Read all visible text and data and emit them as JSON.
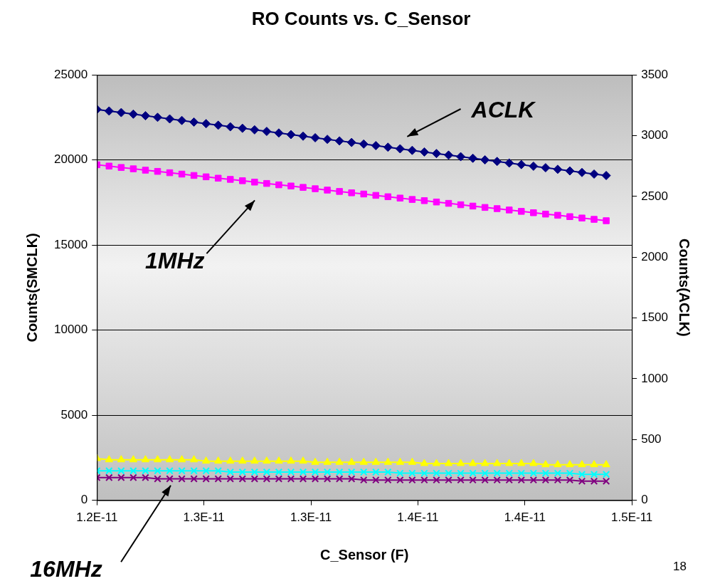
{
  "chart_data": {
    "type": "line",
    "title": "RO Counts vs. C_Sensor",
    "xlabel": "C_Sensor (F)",
    "ylabel": "Counts(SMCLK)",
    "y2label": "Counts(ACLK)",
    "x": [
      1.2e-11,
      1.2068e-11,
      1.2136e-11,
      1.2204e-11,
      1.2272e-11,
      1.234e-11,
      1.2408e-11,
      1.2476e-11,
      1.2544e-11,
      1.2612e-11,
      1.268e-11,
      1.2748e-11,
      1.2816e-11,
      1.2884e-11,
      1.2952e-11,
      1.302e-11,
      1.3088e-11,
      1.3156e-11,
      1.3224e-11,
      1.3292e-11,
      1.336e-11,
      1.3428e-11,
      1.3496e-11,
      1.3564e-11,
      1.3632e-11,
      1.37e-11,
      1.3768e-11,
      1.3836e-11,
      1.3904e-11,
      1.3972e-11,
      1.404e-11,
      1.4108e-11,
      1.4176e-11,
      1.4244e-11,
      1.4312e-11,
      1.438e-11,
      1.4448e-11,
      1.4516e-11,
      1.4584e-11,
      1.4652e-11,
      1.472e-11,
      1.4788e-11,
      1.4856e-11
    ],
    "series": [
      {
        "name": "ACLK",
        "color": "#000080",
        "marker": "diamond",
        "axis": "y2",
        "values": [
          3216,
          3203,
          3190,
          3177,
          3164,
          3151,
          3138,
          3125,
          3112,
          3099,
          3086,
          3073,
          3061,
          3048,
          3035,
          3022,
          3009,
          2996,
          2983,
          2970,
          2957,
          2944,
          2931,
          2918,
          2905,
          2892,
          2879,
          2866,
          2853,
          2840,
          2827,
          2814,
          2801,
          2788,
          2775,
          2762,
          2749,
          2736,
          2723,
          2710,
          2697,
          2684,
          2672
        ]
      },
      {
        "name": "1MHz",
        "color": "#ff00ff",
        "marker": "square",
        "values": [
          19720,
          19640,
          19560,
          19480,
          19400,
          19330,
          19250,
          19170,
          19090,
          19010,
          18930,
          18860,
          18780,
          18700,
          18620,
          18540,
          18470,
          18390,
          18310,
          18230,
          18150,
          18070,
          18000,
          17920,
          17840,
          17760,
          17680,
          17610,
          17530,
          17450,
          17370,
          17290,
          17210,
          17140,
          17060,
          16980,
          16900,
          16820,
          16750,
          16670,
          16590,
          16510,
          16430
        ]
      },
      {
        "color": "#ffff00",
        "marker": "triangle",
        "values": [
          2450,
          2380,
          2380,
          2380,
          2380,
          2380,
          2380,
          2380,
          2380,
          2300,
          2300,
          2300,
          2300,
          2300,
          2300,
          2300,
          2300,
          2300,
          2230,
          2230,
          2230,
          2230,
          2230,
          2230,
          2230,
          2230,
          2230,
          2160,
          2160,
          2160,
          2160,
          2160,
          2160,
          2160,
          2160,
          2160,
          2160,
          2090,
          2090,
          2090,
          2090,
          2090,
          2090
        ]
      },
      {
        "color": "#00ffff",
        "marker": "cross",
        "values": [
          1730,
          1730,
          1730,
          1730,
          1730,
          1730,
          1730,
          1730,
          1730,
          1730,
          1730,
          1660,
          1660,
          1660,
          1660,
          1660,
          1660,
          1660,
          1660,
          1660,
          1660,
          1660,
          1660,
          1660,
          1660,
          1590,
          1590,
          1590,
          1590,
          1590,
          1590,
          1590,
          1590,
          1590,
          1590,
          1590,
          1590,
          1590,
          1590,
          1590,
          1520,
          1520,
          1520
        ]
      },
      {
        "name": "16MHz",
        "color": "#800080",
        "marker": "cross",
        "values": [
          1330,
          1330,
          1330,
          1330,
          1330,
          1260,
          1260,
          1260,
          1260,
          1260,
          1260,
          1260,
          1260,
          1260,
          1260,
          1260,
          1260,
          1260,
          1260,
          1260,
          1260,
          1260,
          1190,
          1190,
          1190,
          1190,
          1190,
          1190,
          1190,
          1190,
          1190,
          1190,
          1190,
          1190,
          1190,
          1190,
          1190,
          1190,
          1190,
          1190,
          1120,
          1120,
          1120
        ]
      }
    ],
    "xlim": [
      1.2e-11,
      1.5e-11
    ],
    "xticks": [
      {
        "value": 1.2e-11,
        "label": "1.2E-11"
      },
      {
        "value": 1.26e-11,
        "label": "1.3E-11"
      },
      {
        "value": 1.32e-11,
        "label": "1.3E-11"
      },
      {
        "value": 1.38e-11,
        "label": "1.4E-11"
      },
      {
        "value": 1.44e-11,
        "label": "1.4E-11"
      },
      {
        "value": 1.5e-11,
        "label": "1.5E-11"
      }
    ],
    "ylim": [
      0,
      25000
    ],
    "yticks": [
      0,
      5000,
      10000,
      15000,
      20000,
      25000
    ],
    "y2lim": [
      0,
      3500
    ],
    "y2ticks": [
      0,
      500,
      1000,
      1500,
      2000,
      2500,
      3000,
      3500
    ],
    "grid": "y",
    "legend": false,
    "line_style": "solid",
    "annotations": [
      "18"
    ]
  }
}
